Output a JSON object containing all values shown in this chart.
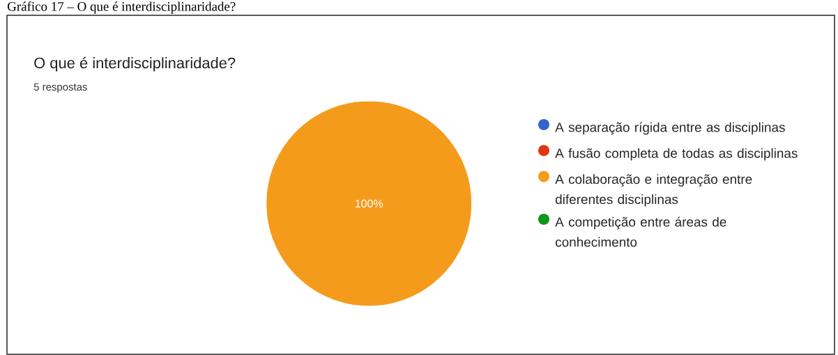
{
  "chart_data": {
    "type": "pie",
    "title": "O que é interdisciplinaridade?",
    "subtitle": "5 respostas",
    "annotations": [
      "Gráfico 17 – O que é interdisciplinaridade?"
    ],
    "categories": [
      "A separação rígida entre as disciplinas",
      "A fusão completa de todas as disciplinas",
      "A colaboração e integração entre diferentes disciplinas",
      "A competição entre áreas de conhecimento"
    ],
    "values": [
      0,
      0,
      100,
      0
    ],
    "colors": [
      "#3366cc",
      "#dc3912",
      "#f59b1c",
      "#109618"
    ],
    "value_labels": [
      null,
      null,
      "100%",
      null
    ],
    "legend": "right"
  }
}
